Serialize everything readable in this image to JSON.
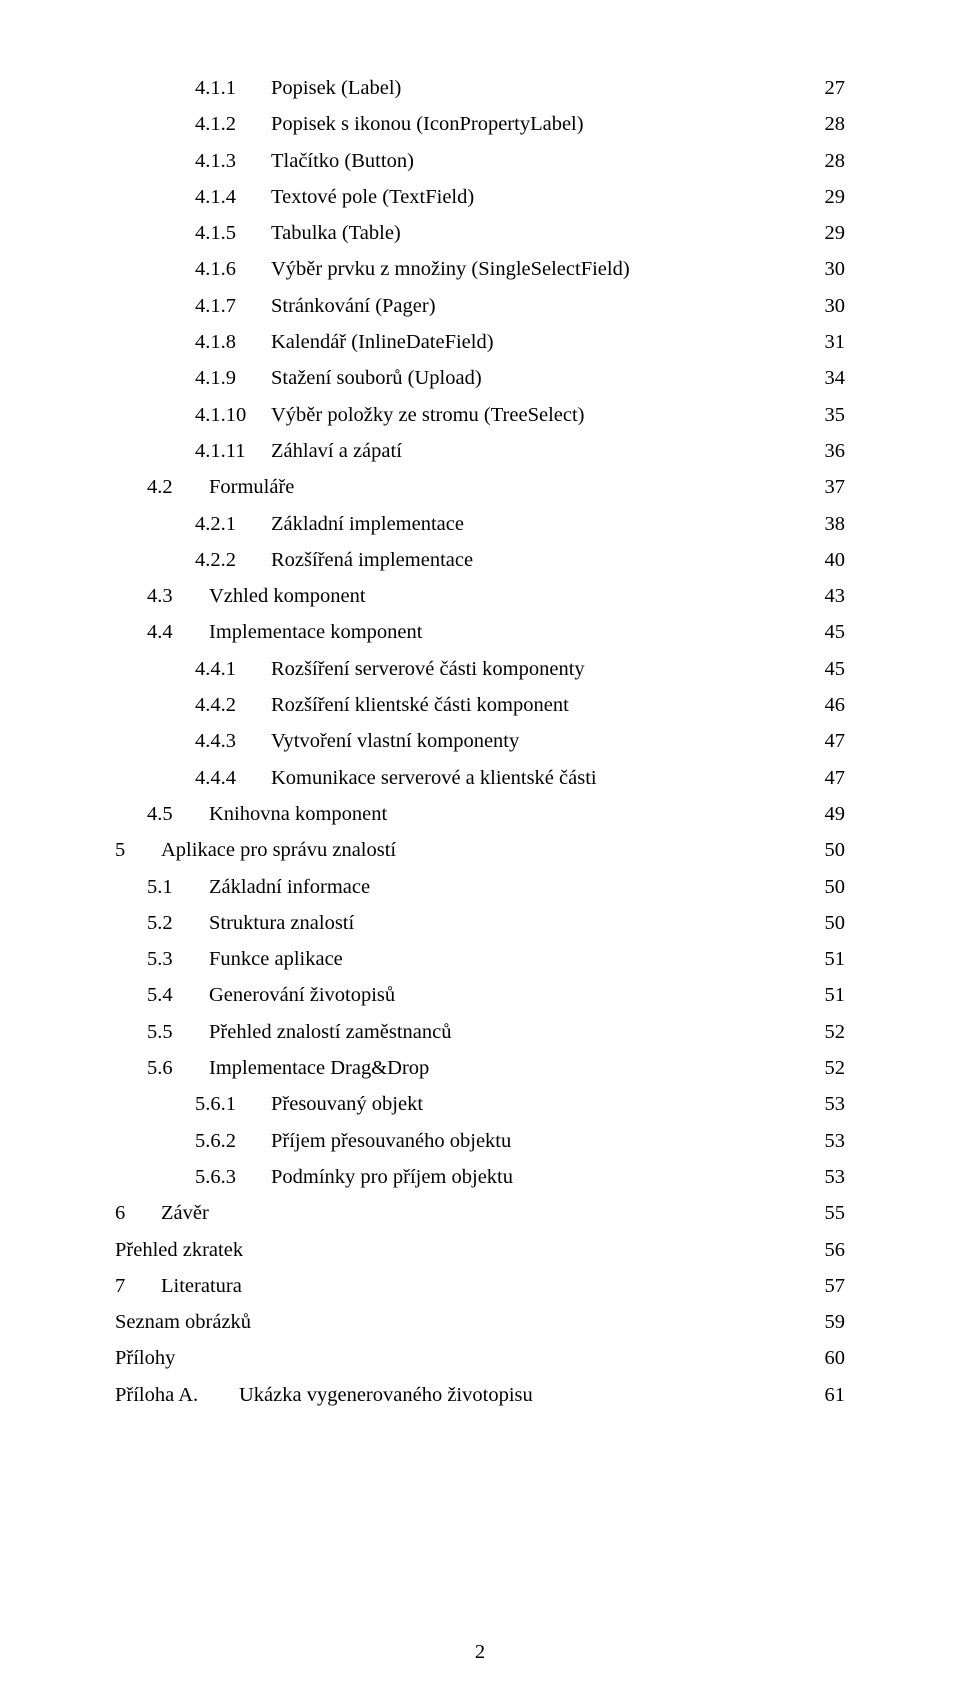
{
  "page_number": "2",
  "entries": [
    {
      "level": 2,
      "num": "4.1.1",
      "title": "Popisek (Label)",
      "page": "27"
    },
    {
      "level": 2,
      "num": "4.1.2",
      "title": "Popisek s ikonou (IconPropertyLabel)",
      "page": "28"
    },
    {
      "level": 2,
      "num": "4.1.3",
      "title": "Tlačítko (Button)",
      "page": "28"
    },
    {
      "level": 2,
      "num": "4.1.4",
      "title": "Textové pole (TextField)",
      "page": "29"
    },
    {
      "level": 2,
      "num": "4.1.5",
      "title": "Tabulka (Table)",
      "page": "29"
    },
    {
      "level": 2,
      "num": "4.1.6",
      "title": "Výběr prvku z množiny (SingleSelectField)",
      "page": "30"
    },
    {
      "level": 2,
      "num": "4.1.7",
      "title": "Stránkování (Pager)",
      "page": "30"
    },
    {
      "level": 2,
      "num": "4.1.8",
      "title": "Kalendář (InlineDateField)",
      "page": "31"
    },
    {
      "level": 2,
      "num": "4.1.9",
      "title": "Stažení souborů (Upload)",
      "page": "34"
    },
    {
      "level": 2,
      "num": "4.1.10",
      "title": "Výběr položky ze stromu (TreeSelect)",
      "page": "35"
    },
    {
      "level": 2,
      "num": "4.1.11",
      "title": "Záhlaví a zápatí",
      "page": "36"
    },
    {
      "level": 1,
      "num": "4.2",
      "title": "Formuláře",
      "page": "37"
    },
    {
      "level": 2,
      "num": "4.2.1",
      "title": "Základní implementace",
      "page": "38"
    },
    {
      "level": 2,
      "num": "4.2.2",
      "title": "Rozšířená implementace",
      "page": "40"
    },
    {
      "level": 1,
      "num": "4.3",
      "title": "Vzhled komponent",
      "page": "43"
    },
    {
      "level": 1,
      "num": "4.4",
      "title": "Implementace komponent",
      "page": "45"
    },
    {
      "level": 2,
      "num": "4.4.1",
      "title": "Rozšíření serverové části komponenty",
      "page": "45"
    },
    {
      "level": 2,
      "num": "4.4.2",
      "title": "Rozšíření klientské části komponent",
      "page": "46"
    },
    {
      "level": 2,
      "num": "4.4.3",
      "title": "Vytvoření vlastní komponenty",
      "page": "47"
    },
    {
      "level": 2,
      "num": "4.4.4",
      "title": "Komunikace serverové a klientské části",
      "page": "47"
    },
    {
      "level": 1,
      "num": "4.5",
      "title": "Knihovna komponent",
      "page": "49"
    },
    {
      "level": 0,
      "num": "5",
      "title": "Aplikace pro správu znalostí",
      "page": "50"
    },
    {
      "level": 1,
      "num": "5.1",
      "title": "Základní informace",
      "page": "50"
    },
    {
      "level": 1,
      "num": "5.2",
      "title": "Struktura znalostí",
      "page": "50"
    },
    {
      "level": 1,
      "num": "5.3",
      "title": "Funkce aplikace",
      "page": "51"
    },
    {
      "level": 1,
      "num": "5.4",
      "title": "Generování životopisů",
      "page": "51"
    },
    {
      "level": 1,
      "num": "5.5",
      "title": "Přehled znalostí zaměstnanců",
      "page": "52"
    },
    {
      "level": 1,
      "num": "5.6",
      "title": "Implementace Drag&Drop",
      "page": "52"
    },
    {
      "level": 2,
      "num": "5.6.1",
      "title": "Přesouvaný objekt",
      "page": "53"
    },
    {
      "level": 2,
      "num": "5.6.2",
      "title": "Příjem přesouvaného objektu",
      "page": "53"
    },
    {
      "level": 2,
      "num": "5.6.3",
      "title": "Podmínky pro příjem objektu",
      "page": "53"
    },
    {
      "level": 0,
      "num": "6",
      "title": "Závěr",
      "page": "55"
    },
    {
      "level": 0,
      "num": "",
      "title": "Přehled zkratek",
      "page": "56",
      "nonum": true
    },
    {
      "level": 0,
      "num": "7",
      "title": "Literatura",
      "page": "57"
    },
    {
      "level": 0,
      "num": "",
      "title": "Seznam obrázků",
      "page": "59",
      "nonum": true
    },
    {
      "level": 0,
      "num": "",
      "title": "Přílohy",
      "page": "60",
      "nonum": true
    },
    {
      "level": 0,
      "num": "Příloha A.",
      "title": "Ukázka vygenerovaného životopisu",
      "page": "61",
      "appendix": true
    }
  ]
}
